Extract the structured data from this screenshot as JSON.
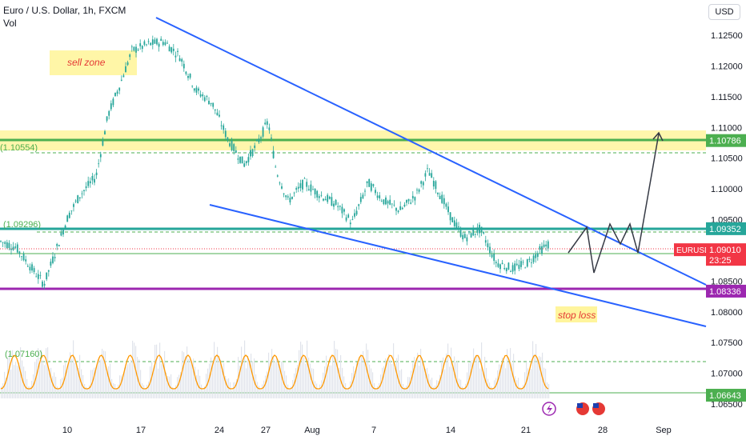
{
  "header": {
    "symbol_title": "Euro / U.S. Dollar, 1h, FXCM",
    "volume_label": "Vol",
    "currency_button": "USD"
  },
  "chart_data": {
    "type": "candlestick",
    "price_axis": {
      "ticks": [
        "1.12500",
        "1.12000",
        "1.11500",
        "1.11000",
        "1.10500",
        "1.10000",
        "1.09500",
        "1.09000",
        "1.08500",
        "1.08000",
        "1.07500",
        "1.07000",
        "1.06500"
      ],
      "ylim": [
        1.064,
        1.1275
      ]
    },
    "time_axis": {
      "ticks": [
        "10",
        "17",
        "24",
        "27",
        "Aug",
        "7",
        "14",
        "21",
        "28",
        "Sep"
      ]
    },
    "current_price": {
      "symbol": "EURUSD",
      "value": "1.09010",
      "countdown": "23:25",
      "color": "#f23645"
    },
    "price_labels": [
      {
        "value": "1.10786",
        "color": "#4caf50"
      },
      {
        "value": "1.09352",
        "color": "#26a69a"
      },
      {
        "value": "1.08940",
        "color": "#4caf50"
      },
      {
        "value": "1.08336",
        "color": "#9c27b0"
      },
      {
        "value": "1.06643",
        "color": "#4caf50"
      }
    ],
    "dashed_levels": [
      {
        "label": "(1.10554)",
        "value": 1.10554
      },
      {
        "label": "(1.09296)",
        "value": 1.09296
      },
      {
        "label": "(1.07160)",
        "value": 1.0716
      }
    ],
    "annotations": [
      {
        "text": "sell zone"
      },
      {
        "text": "stop loss"
      }
    ],
    "colors": {
      "bull": "#26a69a",
      "bear": "#26a69a",
      "trendline": "#2962ff",
      "zone": "#ffeb3b",
      "volume_ma": "#ff9800"
    }
  }
}
